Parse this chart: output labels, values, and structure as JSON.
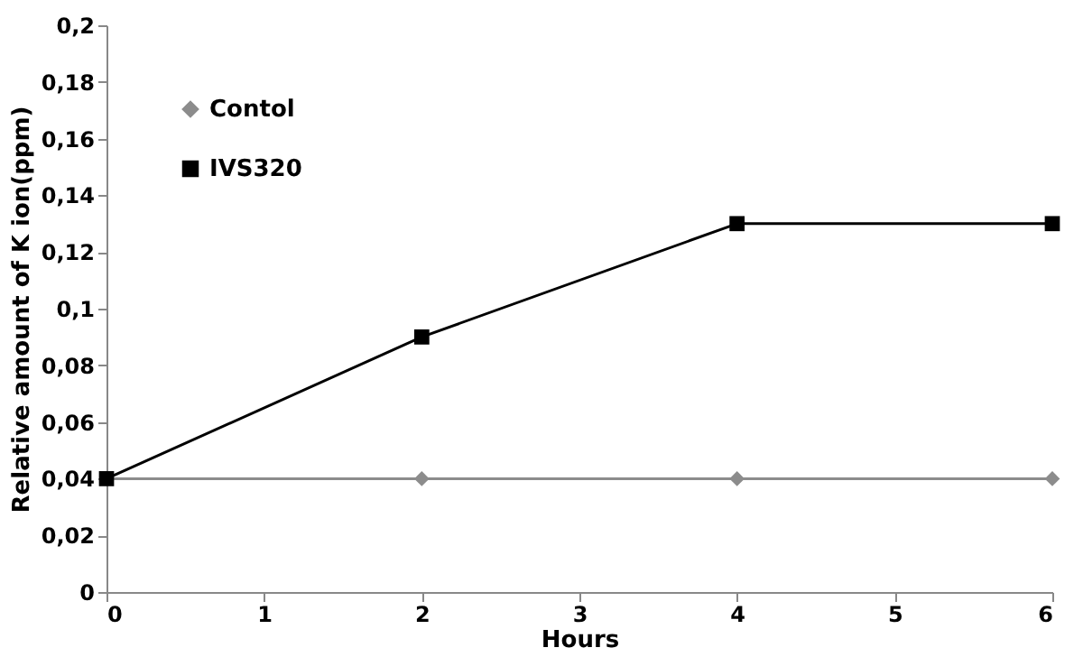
{
  "chart_data": {
    "type": "line",
    "xlabel": "Hours",
    "ylabel": "Relative amount of K ion(ppm)",
    "x": [
      0,
      2,
      4,
      6
    ],
    "series": [
      {
        "name": "Contol",
        "color": "#8c8c8c",
        "marker": "diamond",
        "values": [
          0.04,
          0.04,
          0.04,
          0.04
        ]
      },
      {
        "name": "IVS320",
        "color": "#000000",
        "marker": "square",
        "values": [
          0.04,
          0.09,
          0.13,
          0.13
        ]
      }
    ],
    "xlim": [
      0,
      6
    ],
    "xticks": [
      0,
      1,
      2,
      3,
      4,
      5,
      6
    ],
    "ylim": [
      0,
      0.2
    ],
    "yticks": [
      0,
      {
        "value": 0.02,
        "label": "0,02"
      },
      {
        "value": 0.04,
        "label": "0,04"
      },
      {
        "value": 0.06,
        "label": "0,06"
      },
      {
        "value": 0.08,
        "label": "0,08"
      },
      {
        "value": 0.1,
        "label": "0,1"
      },
      {
        "value": 0.12,
        "label": "0,12"
      },
      {
        "value": 0.14,
        "label": "0,14"
      },
      {
        "value": 0.16,
        "label": "0,16"
      },
      {
        "value": 0.18,
        "label": "0,18"
      },
      {
        "value": 0.2,
        "label": "0,2"
      }
    ],
    "legend": "top left",
    "grid": false,
    "line_style": "solid"
  }
}
